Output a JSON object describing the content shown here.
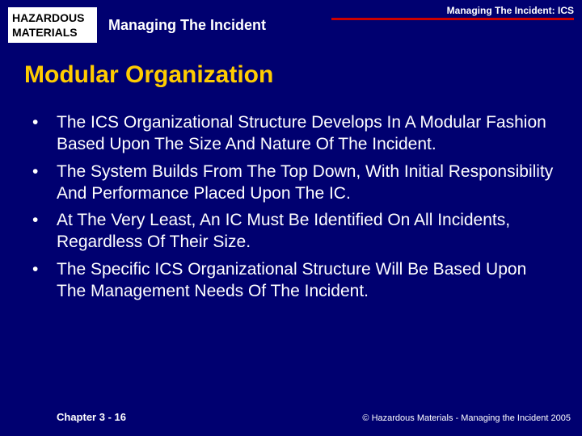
{
  "colors": {
    "background": "#000070",
    "title_color": "#ffcc00",
    "body_text_color": "#ffffff",
    "rule_color": "#cc0000",
    "logo_bg": "#ffffff",
    "logo_text": "#000000"
  },
  "typography": {
    "title_fontsize": 30,
    "body_fontsize": 21,
    "header_label_fontsize": 18,
    "footer_fontsize": 13
  },
  "header": {
    "logo_line1": "HAZARDOUS",
    "logo_line2": "MATERIALS",
    "title": "Managing The Incident",
    "right_label": "Managing The Incident: ICS"
  },
  "slide_title": "Modular Organization",
  "bullets": [
    "The ICS Organizational Structure Develops In A Modular Fashion Based Upon The Size And Nature Of The Incident.",
    "The System Builds From The Top Down, With Initial Responsibility And Performance Placed Upon The IC.",
    "At The Very Least, An IC Must Be Identified On All Incidents, Regardless Of Their Size.",
    "The Specific ICS Organizational Structure Will Be Based Upon The Management Needs Of The Incident."
  ],
  "footer": {
    "left": "Chapter 3 - 16",
    "right": "© Hazardous Materials - Managing the Incident 2005"
  }
}
